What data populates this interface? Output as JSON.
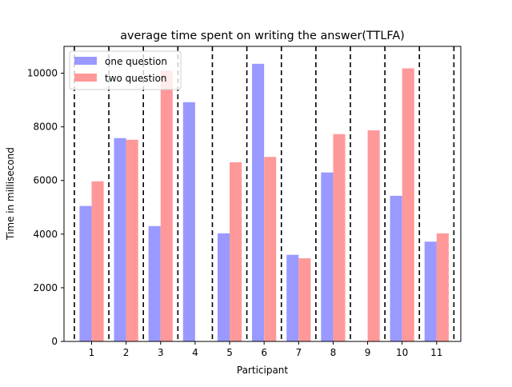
{
  "chart_data": {
    "type": "bar",
    "title": "average time spent on writing the answer(TTLFA)",
    "xlabel": "Participant",
    "ylabel": "Time in millisecond",
    "categories": [
      "1",
      "2",
      "3",
      "4",
      "5",
      "6",
      "7",
      "8",
      "9",
      "10",
      "11"
    ],
    "ylim": [
      0,
      11000
    ],
    "yticks": [
      "0",
      "2000",
      "4000",
      "6000",
      "8000",
      "10000"
    ],
    "series": [
      {
        "name": "one question",
        "color": "#9999ff",
        "values": [
          5050,
          7580,
          4300,
          8920,
          4030,
          10350,
          3230,
          6300,
          0,
          5430,
          3720
        ]
      },
      {
        "name": "two question",
        "color": "#ff9999",
        "values": [
          5970,
          7520,
          10100,
          0,
          6680,
          6880,
          3100,
          7730,
          7870,
          10180,
          4030
        ]
      }
    ],
    "legend": "top-left",
    "grid": false,
    "separators": "dashed vertical lines between participants"
  }
}
